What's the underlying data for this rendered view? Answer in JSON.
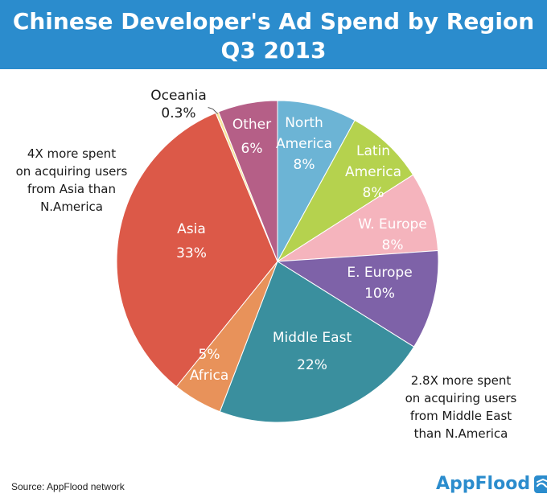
{
  "header": {
    "title_line1": "Chinese Developer's Ad Spend by Region",
    "title_line2": "Q3 2013"
  },
  "chart_data": {
    "type": "pie",
    "slices": [
      {
        "id": "north-america",
        "label_lines": [
          "North",
          "America"
        ],
        "pct_label": "8%",
        "value": 8,
        "color": "#6cb4d5"
      },
      {
        "id": "latin-america",
        "label_lines": [
          "Latin",
          "America"
        ],
        "pct_label": "8%",
        "value": 8,
        "color": "#b5d24e"
      },
      {
        "id": "w-europe",
        "label_lines": [
          "W. Europe"
        ],
        "pct_label": "8%",
        "value": 8,
        "color": "#f5b4bd"
      },
      {
        "id": "e-europe",
        "label_lines": [
          "E. Europe"
        ],
        "pct_label": "10%",
        "value": 10,
        "color": "#7e62a8"
      },
      {
        "id": "middle-east",
        "label_lines": [
          "Middle East"
        ],
        "pct_label": "22%",
        "value": 22,
        "color": "#3a8f9e"
      },
      {
        "id": "africa",
        "label_lines": [
          "Africa"
        ],
        "pct_label": "5%",
        "value": 5,
        "color": "#e8925a"
      },
      {
        "id": "asia",
        "label_lines": [
          "Asia"
        ],
        "pct_label": "33%",
        "value": 33,
        "color": "#dc5948"
      },
      {
        "id": "oceania",
        "label_lines": [
          "Oceania"
        ],
        "pct_label": "0.3%",
        "value": 0.3,
        "color": "#f6e49a"
      },
      {
        "id": "other",
        "label_lines": [
          "Other"
        ],
        "pct_label": "6%",
        "value": 6,
        "color": "#b55f87"
      }
    ]
  },
  "annotations": {
    "asia_note": [
      "4X more spent",
      "on acquiring users",
      "from Asia than",
      "N.America"
    ],
    "middle_east_note": [
      "2.8X more spent",
      "on acquiring users",
      "from Middle East",
      "than N.America"
    ]
  },
  "footer": {
    "source": "Source: AppFlood network",
    "brand": "AppFlood"
  }
}
